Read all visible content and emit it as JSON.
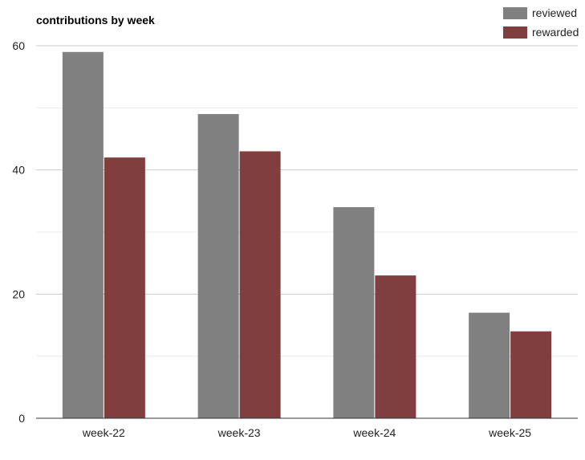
{
  "chart_data": {
    "type": "bar",
    "title": "contributions by week",
    "xlabel": "",
    "ylabel": "",
    "categories": [
      "week-22",
      "week-23",
      "week-24",
      "week-25"
    ],
    "series": [
      {
        "name": "reviewed",
        "values": [
          59,
          49,
          34,
          17
        ],
        "color": "#808080"
      },
      {
        "name": "rewarded",
        "values": [
          42,
          43,
          23,
          14
        ],
        "color": "#803e3f"
      }
    ],
    "ylim": [
      0,
      60
    ],
    "yticks": [
      0,
      20,
      40,
      60
    ],
    "grid": true,
    "legend": "top-right"
  }
}
